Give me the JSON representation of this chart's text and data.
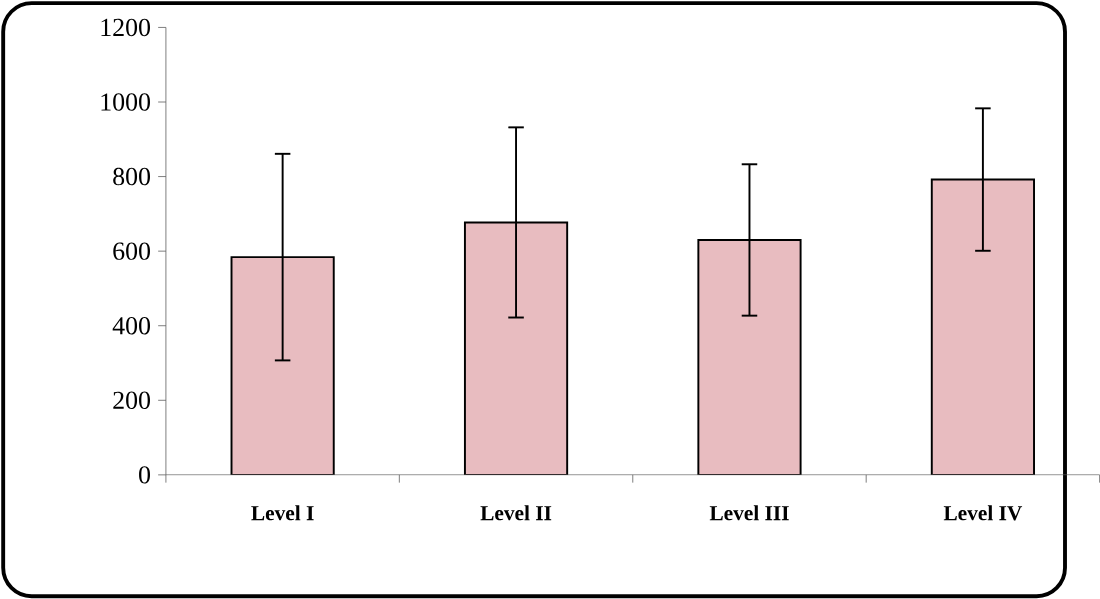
{
  "chart_data": {
    "type": "bar",
    "categories": [
      "Level  I",
      "Level II",
      "Level III",
      "Level IV"
    ],
    "values": [
      584,
      677,
      630,
      792
    ],
    "errors": [
      277,
      255,
      203,
      191
    ],
    "color": "#e8bcc0",
    "ylim": [
      0,
      1200
    ],
    "yticks": [
      0,
      200,
      400,
      600,
      800,
      1000,
      1200
    ],
    "grid": false
  }
}
